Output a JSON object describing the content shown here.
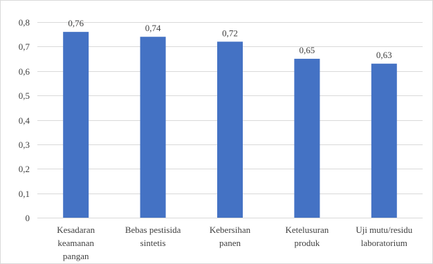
{
  "chart_data": {
    "type": "bar",
    "categories": [
      [
        "Kesadaran",
        "keamanan",
        "pangan"
      ],
      [
        "Bebas pestisida",
        "sintetis"
      ],
      [
        "Kebersihan",
        "panen"
      ],
      [
        "Ketelusuran",
        "produk"
      ],
      [
        "Uji mutu/residu",
        "laboratorium"
      ]
    ],
    "values": [
      0.76,
      0.74,
      0.72,
      0.65,
      0.63
    ],
    "value_labels": [
      "0,76",
      "0,74",
      "0,72",
      "0,65",
      "0,63"
    ],
    "ylim": [
      0,
      0.8
    ],
    "yticks": [
      0,
      0.1,
      0.2,
      0.3,
      0.4,
      0.5,
      0.6,
      0.7,
      0.8
    ],
    "ytick_labels": [
      "0",
      "0,1",
      "0,2",
      "0,3",
      "0,4",
      "0,5",
      "0,6",
      "0,7",
      "0,8"
    ],
    "grid": true,
    "legend": "none",
    "bar_color": "#4472C4",
    "title": "",
    "xlabel": "",
    "ylabel": ""
  }
}
